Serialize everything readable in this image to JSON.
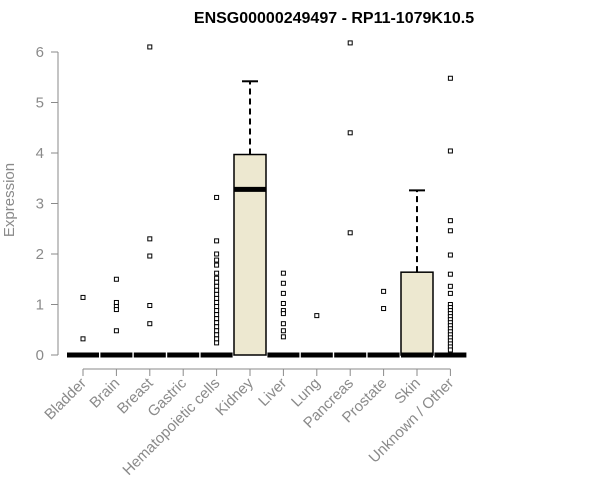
{
  "chart_data": {
    "type": "boxplot",
    "title": "ENSG00000249497 - RP11-1079K10.5",
    "xlabel": "",
    "ylabel": "Expression",
    "ylim": [
      0,
      6.2
    ],
    "yticks": [
      0,
      1,
      2,
      3,
      4,
      5,
      6
    ],
    "grid": false,
    "box_fill": "#ede8d0",
    "categories": [
      "Bladder",
      "Brain",
      "Breast",
      "Gastric",
      "Hematopoietic cells",
      "Kidney",
      "Liver",
      "Lung",
      "Pancreas",
      "Prostate",
      "Skin",
      "Unknown / Other"
    ],
    "boxes": [
      {
        "q1": 0,
        "median": 0,
        "q3": 0,
        "whisker_low": 0,
        "whisker_high": 0,
        "outliers": [
          1.14,
          0.32
        ]
      },
      {
        "q1": 0,
        "median": 0,
        "q3": 0,
        "whisker_low": 0,
        "whisker_high": 0,
        "outliers": [
          1.5,
          1.04,
          0.96,
          0.9,
          0.48
        ]
      },
      {
        "q1": 0,
        "median": 0,
        "q3": 0,
        "whisker_low": 0,
        "whisker_high": 0,
        "outliers": [
          6.1,
          2.3,
          1.96,
          0.98,
          0.62
        ]
      },
      {
        "q1": 0,
        "median": 0,
        "q3": 0,
        "whisker_low": 0,
        "whisker_high": 0,
        "outliers": []
      },
      {
        "q1": 0,
        "median": 0,
        "q3": 0,
        "whisker_low": 0,
        "whisker_high": 0,
        "outliers": [
          3.12,
          2.26,
          2.0,
          1.88,
          1.78,
          1.62,
          1.52,
          1.44,
          1.36,
          1.28,
          1.2,
          1.12,
          1.04,
          0.96,
          0.88,
          0.8,
          0.72,
          0.64,
          0.56,
          0.48,
          0.4,
          0.32,
          0.24
        ]
      },
      {
        "q1": 0,
        "median": 3.28,
        "q3": 3.97,
        "whisker_low": 0,
        "whisker_high": 5.42,
        "outliers": []
      },
      {
        "q1": 0,
        "median": 0,
        "q3": 0,
        "whisker_low": 0,
        "whisker_high": 0,
        "outliers": [
          1.62,
          1.42,
          1.22,
          1.02,
          0.88,
          0.82,
          0.62,
          0.48,
          0.36
        ]
      },
      {
        "q1": 0,
        "median": 0,
        "q3": 0,
        "whisker_low": 0,
        "whisker_high": 0,
        "outliers": [
          0.78
        ]
      },
      {
        "q1": 0,
        "median": 0,
        "q3": 0,
        "whisker_low": 0,
        "whisker_high": 0,
        "outliers": [
          6.18,
          4.4,
          2.42
        ]
      },
      {
        "q1": 0,
        "median": 0,
        "q3": 0,
        "whisker_low": 0,
        "whisker_high": 0,
        "outliers": [
          1.26,
          0.92
        ]
      },
      {
        "q1": 0,
        "median": 0,
        "q3": 1.64,
        "whisker_low": 0,
        "whisker_high": 3.26,
        "outliers": []
      },
      {
        "q1": 0,
        "median": 0,
        "q3": 0,
        "whisker_low": 0,
        "whisker_high": 0,
        "outliers": [
          5.48,
          4.04,
          2.66,
          2.46,
          1.98,
          1.6,
          1.36,
          1.22,
          1.0,
          0.94,
          0.88,
          0.82,
          0.76,
          0.7,
          0.64,
          0.58,
          0.52,
          0.46,
          0.4,
          0.34,
          0.28,
          0.22,
          0.16,
          0.1
        ]
      }
    ]
  }
}
